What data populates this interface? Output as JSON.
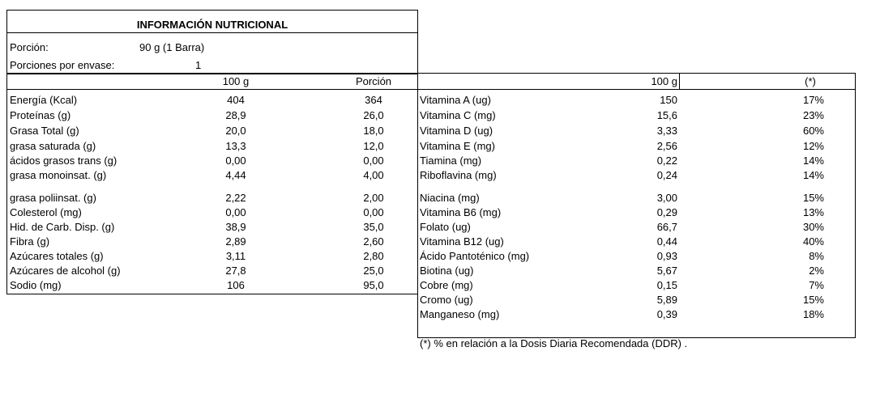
{
  "header": {
    "title": "INFORMACIÓN NUTRICIONAL",
    "serving_label": "Porción:",
    "serving_value": "90 g (1 Barra)",
    "servings_label": "Porciones por envase:",
    "servings_value": "1"
  },
  "left_table": {
    "columns": [
      "100 g",
      "Porción"
    ],
    "rows": [
      [
        "Energía (Kcal)",
        "404",
        "364"
      ],
      [
        "Proteínas (g)",
        "28,9",
        "26,0"
      ],
      [
        "Grasa Total (g)",
        "20,0",
        "18,0"
      ],
      [
        "grasa saturada (g)",
        "13,3",
        "12,0"
      ],
      [
        "ácidos grasos trans (g)",
        "0,00",
        "0,00"
      ],
      [
        "grasa monoinsat. (g)",
        "4,44",
        "4,00"
      ],
      [
        "grasa poliinsat. (g)",
        "2,22",
        "2,00"
      ],
      [
        "Colesterol (mg)",
        "0,00",
        "0,00"
      ],
      [
        "Hid. de Carb. Disp. (g)",
        "38,9",
        "35,0"
      ],
      [
        "Fibra  (g)",
        "2,89",
        "2,60"
      ],
      [
        "Azúcares totales (g)",
        "3,11",
        "2,80"
      ],
      [
        "Azúcares de alcohol (g)",
        "27,8",
        "25,0"
      ],
      [
        "Sodio (mg)",
        "106",
        "95,0"
      ]
    ]
  },
  "right_table": {
    "columns": [
      "100 g",
      "(*)"
    ],
    "rows": [
      [
        "Vitamina A (ug)",
        "150",
        "17%"
      ],
      [
        "Vitamina C (mg)",
        "15,6",
        "23%"
      ],
      [
        "Vitamina D (ug)",
        "3,33",
        "60%"
      ],
      [
        "Vitamina E (mg)",
        "2,56",
        "12%"
      ],
      [
        "Tiamina (mg)",
        "0,22",
        "14%"
      ],
      [
        "Riboflavina (mg)",
        "0,24",
        "14%"
      ],
      [
        "Niacina (mg)",
        "3,00",
        "15%"
      ],
      [
        "Vitamina B6 (mg)",
        "0,29",
        "13%"
      ],
      [
        "Folato (ug)",
        "66,7",
        "30%"
      ],
      [
        "Vitamina B12 (ug)",
        "0,44",
        "40%"
      ],
      [
        "Ácido Pantoténico (mg)",
        "0,93",
        "8%"
      ],
      [
        "Biotina (ug)",
        "5,67",
        "2%"
      ],
      [
        "Cobre (mg)",
        "0,15",
        "7%"
      ],
      [
        "Cromo (ug)",
        "5,89",
        "15%"
      ],
      [
        "Manganeso (mg)",
        "0,39",
        "18%"
      ]
    ]
  },
  "footnote": "(*) % en relación a la Dosis Diaria Recomendada (DDR) ."
}
